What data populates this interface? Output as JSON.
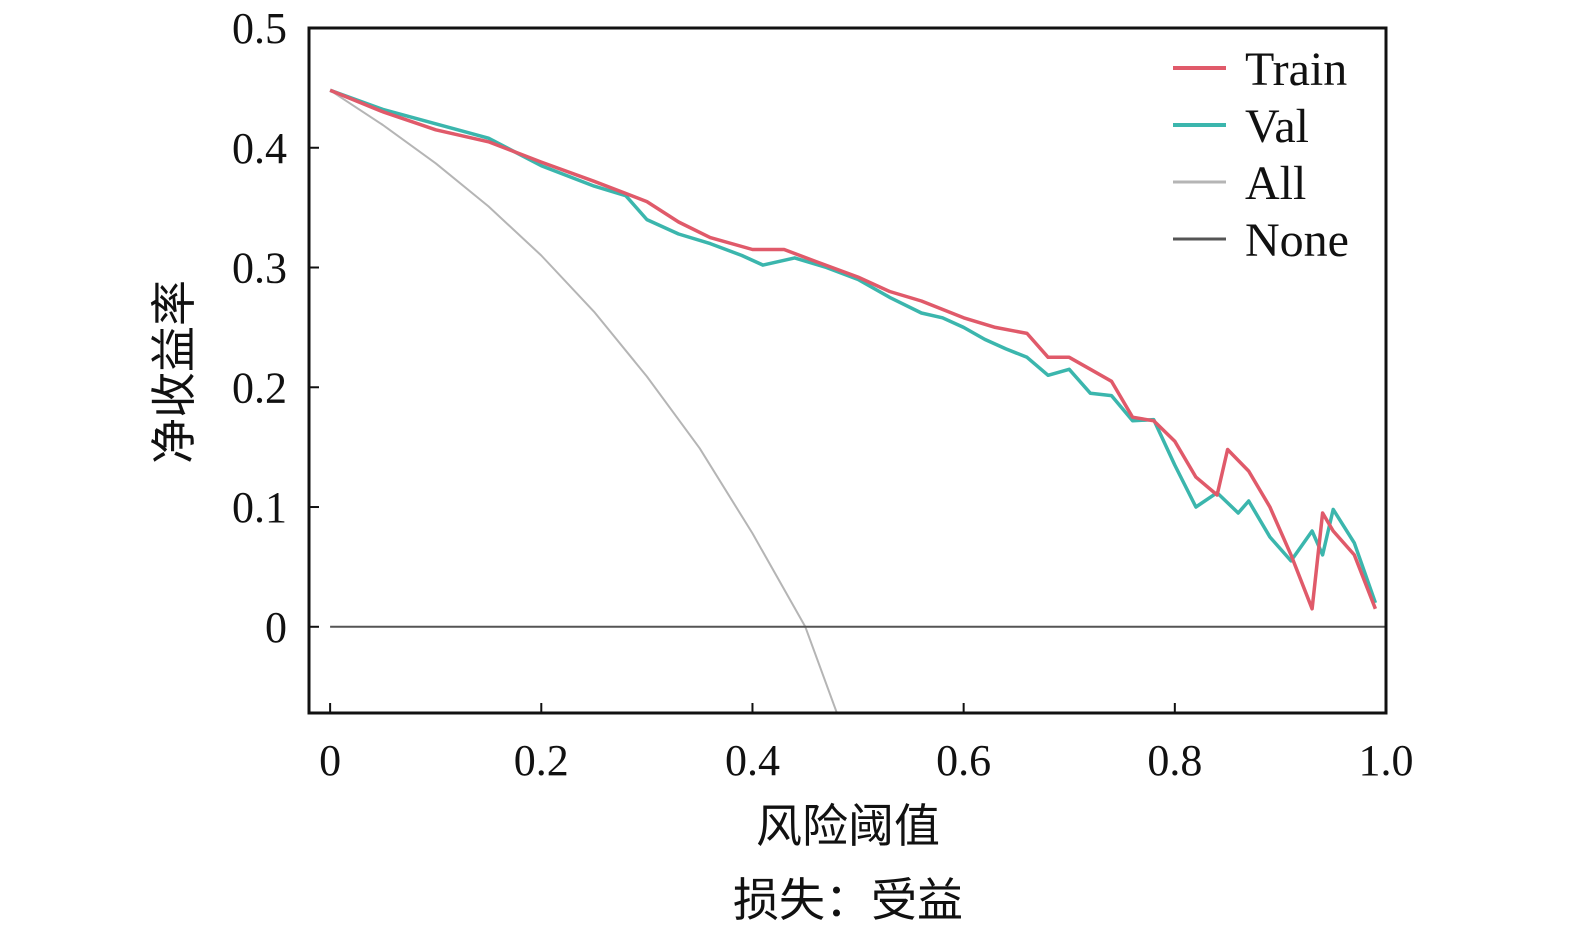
{
  "chart_data": {
    "type": "line",
    "title": "",
    "xlabel": "风险阈值",
    "ylabel": "净收益率",
    "caption": "损失：受益",
    "xlim": [
      -0.02,
      1.0
    ],
    "ylim": [
      -0.072,
      0.5
    ],
    "x_ticks": [
      0,
      0.2,
      0.4,
      0.6,
      0.8,
      1.0
    ],
    "x_tick_labels": [
      "0",
      "0.2",
      "0.4",
      "0.6",
      "0.8",
      "1.0"
    ],
    "y_ticks": [
      0,
      0.1,
      0.2,
      0.3,
      0.4,
      0.5
    ],
    "y_tick_labels": [
      "0",
      "0.1",
      "0.2",
      "0.3",
      "0.4",
      "0.5"
    ],
    "grid": false,
    "legend_position": "top-right",
    "series": [
      {
        "name": "Train",
        "color": "#e05a6a",
        "points": [
          [
            0,
            0.448
          ],
          [
            0.05,
            0.43
          ],
          [
            0.1,
            0.415
          ],
          [
            0.15,
            0.405
          ],
          [
            0.2,
            0.388
          ],
          [
            0.25,
            0.372
          ],
          [
            0.3,
            0.355
          ],
          [
            0.33,
            0.338
          ],
          [
            0.36,
            0.325
          ],
          [
            0.4,
            0.315
          ],
          [
            0.43,
            0.315
          ],
          [
            0.46,
            0.305
          ],
          [
            0.5,
            0.292
          ],
          [
            0.53,
            0.28
          ],
          [
            0.56,
            0.272
          ],
          [
            0.6,
            0.258
          ],
          [
            0.63,
            0.25
          ],
          [
            0.66,
            0.245
          ],
          [
            0.68,
            0.225
          ],
          [
            0.7,
            0.225
          ],
          [
            0.72,
            0.215
          ],
          [
            0.74,
            0.205
          ],
          [
            0.76,
            0.175
          ],
          [
            0.78,
            0.172
          ],
          [
            0.8,
            0.155
          ],
          [
            0.82,
            0.125
          ],
          [
            0.84,
            0.11
          ],
          [
            0.85,
            0.148
          ],
          [
            0.87,
            0.13
          ],
          [
            0.89,
            0.1
          ],
          [
            0.91,
            0.06
          ],
          [
            0.93,
            0.015
          ],
          [
            0.94,
            0.095
          ],
          [
            0.95,
            0.08
          ],
          [
            0.97,
            0.06
          ],
          [
            0.99,
            0.015
          ]
        ]
      },
      {
        "name": "Val",
        "color": "#3bb6ad",
        "points": [
          [
            0,
            0.448
          ],
          [
            0.05,
            0.432
          ],
          [
            0.1,
            0.42
          ],
          [
            0.15,
            0.408
          ],
          [
            0.2,
            0.385
          ],
          [
            0.25,
            0.368
          ],
          [
            0.28,
            0.36
          ],
          [
            0.3,
            0.34
          ],
          [
            0.33,
            0.328
          ],
          [
            0.36,
            0.32
          ],
          [
            0.39,
            0.31
          ],
          [
            0.41,
            0.302
          ],
          [
            0.44,
            0.308
          ],
          [
            0.47,
            0.3
          ],
          [
            0.5,
            0.29
          ],
          [
            0.53,
            0.275
          ],
          [
            0.56,
            0.262
          ],
          [
            0.58,
            0.258
          ],
          [
            0.6,
            0.25
          ],
          [
            0.62,
            0.24
          ],
          [
            0.64,
            0.232
          ],
          [
            0.66,
            0.225
          ],
          [
            0.68,
            0.21
          ],
          [
            0.7,
            0.215
          ],
          [
            0.72,
            0.195
          ],
          [
            0.74,
            0.193
          ],
          [
            0.76,
            0.172
          ],
          [
            0.78,
            0.173
          ],
          [
            0.8,
            0.135
          ],
          [
            0.82,
            0.1
          ],
          [
            0.84,
            0.112
          ],
          [
            0.86,
            0.095
          ],
          [
            0.87,
            0.105
          ],
          [
            0.89,
            0.075
          ],
          [
            0.91,
            0.055
          ],
          [
            0.93,
            0.08
          ],
          [
            0.94,
            0.06
          ],
          [
            0.95,
            0.098
          ],
          [
            0.97,
            0.07
          ],
          [
            0.99,
            0.02
          ]
        ]
      },
      {
        "name": "All",
        "color": "#b5b5b5",
        "points": [
          [
            0,
            0.448
          ],
          [
            0.05,
            0.419
          ],
          [
            0.1,
            0.387
          ],
          [
            0.15,
            0.351
          ],
          [
            0.2,
            0.31
          ],
          [
            0.25,
            0.263
          ],
          [
            0.3,
            0.209
          ],
          [
            0.35,
            0.149
          ],
          [
            0.4,
            0.078
          ],
          [
            0.45,
            0.0
          ],
          [
            0.48,
            -0.072
          ]
        ]
      },
      {
        "name": "None",
        "color": "#555555",
        "points": [
          [
            0,
            0
          ],
          [
            1.0,
            0
          ]
        ]
      }
    ]
  }
}
